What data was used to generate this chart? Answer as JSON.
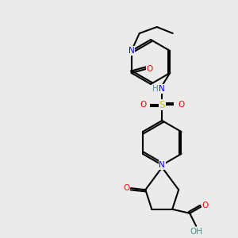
{
  "bg_color": "#ebebeb",
  "bond_color": "#000000",
  "bond_lw": 1.5,
  "atom_colors": {
    "N": "#0000ff",
    "O": "#ff0000",
    "S": "#cccc00",
    "H_label": "#4a9090"
  },
  "font_size": 7.5,
  "font_size_small": 6.5
}
